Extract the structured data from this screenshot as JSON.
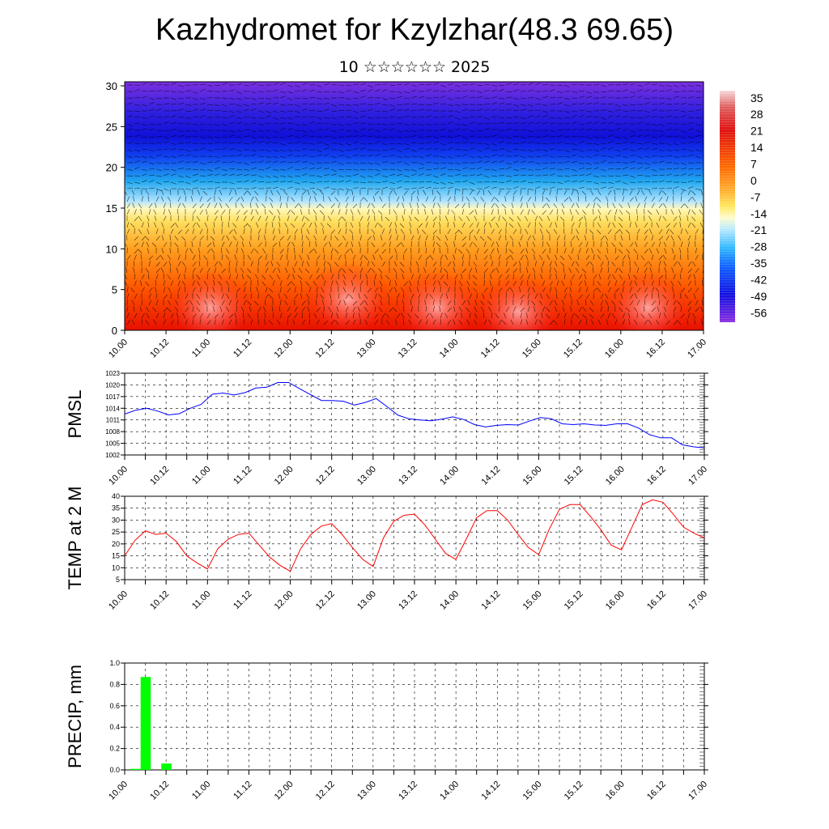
{
  "title": "Kazhydromet for Kzylzhar(48.3 69.65)",
  "subtitle": "10 ☆☆☆☆☆☆ 2025",
  "colors": {
    "pmsl_line": "#0000ff",
    "temp_line": "#ff0000",
    "precip_bar": "#00ff00",
    "grid": "#000000"
  },
  "chart_data": [
    {
      "type": "heatmap",
      "name": "cross-section temperature with wind vectors",
      "x_tick_labels": [
        "10.00",
        "10.12",
        "11.00",
        "11.12",
        "12.00",
        "12.12",
        "13.00",
        "13.12",
        "14.00",
        "14.12",
        "15.00",
        "15.12",
        "16.00",
        "16.12",
        "17.00"
      ],
      "y_tick_labels": [
        "0",
        "5",
        "10",
        "15",
        "20",
        "25",
        "30"
      ],
      "ylim": [
        0,
        30.5
      ],
      "colorbar_labels": [
        "35",
        "28",
        "21",
        "14",
        "7",
        "0",
        "-7",
        "-14",
        "-21",
        "-28",
        "-35",
        "-42",
        "-49",
        "-56"
      ],
      "colorbar_range": [
        -60,
        38
      ]
    },
    {
      "type": "line",
      "ylabel": "PMSL",
      "x_tick_labels": [
        "10.00",
        "10.12",
        "11.00",
        "11.12",
        "12.00",
        "12.12",
        "13.00",
        "13.12",
        "14.00",
        "14.12",
        "15.00",
        "15.12",
        "16.00",
        "16.12",
        "17.00"
      ],
      "y_tick_labels": [
        "1002",
        "1005",
        "1008",
        "1011",
        "1014",
        "1017",
        "1020",
        "1023"
      ],
      "ylim": [
        1002,
        1023
      ],
      "values": [
        1012.5,
        1013.5,
        1014,
        1013.3,
        1012.3,
        1012.6,
        1014,
        1015,
        1017.6,
        1017.9,
        1017.4,
        1018,
        1019.2,
        1019.4,
        1020.6,
        1020.6,
        1019,
        1017.5,
        1016,
        1016,
        1015.8,
        1014.8,
        1015.5,
        1016.5,
        1014.4,
        1012.2,
        1011.3,
        1011,
        1010.8,
        1011.2,
        1011.8,
        1011.1,
        1009.8,
        1009.2,
        1009.6,
        1009.8,
        1009.7,
        1010.7,
        1011.6,
        1011.3,
        1010,
        1009.8,
        1010,
        1009.7,
        1009.6,
        1010,
        1010,
        1008.9,
        1007.2,
        1006.4,
        1006.4,
        1004.6,
        1004.1,
        1003.8
      ]
    },
    {
      "type": "line",
      "ylabel": "TEMP at 2 M",
      "x_tick_labels": [
        "10.00",
        "10.12",
        "11.00",
        "11.12",
        "12.00",
        "12.12",
        "13.00",
        "13.12",
        "14.00",
        "14.12",
        "15.00",
        "15.12",
        "16.00",
        "16.12",
        "17.00"
      ],
      "y_tick_labels": [
        "5",
        "10",
        "15",
        "20",
        "25",
        "30",
        "35",
        "40"
      ],
      "ylim": [
        5,
        40
      ],
      "values": [
        15,
        21.5,
        25.5,
        24,
        24.5,
        21,
        15,
        12,
        9.5,
        18,
        22,
        24,
        24.5,
        19.5,
        14.5,
        11,
        8.5,
        18,
        24,
        27.5,
        28.5,
        24,
        18.5,
        13.5,
        10.5,
        22.5,
        29.5,
        32,
        32.5,
        28,
        22,
        16,
        13.5,
        22,
        31,
        34,
        34,
        30,
        24,
        18.5,
        15.5,
        26,
        34.5,
        36.5,
        36.5,
        31.5,
        26,
        19.5,
        17.5,
        27,
        36.5,
        38.5,
        37.5,
        32.5,
        27,
        24.5,
        22.5
      ]
    },
    {
      "type": "bar",
      "ylabel": "PRECIP, mm",
      "x_tick_labels": [
        "10.00",
        "10.12",
        "11.00",
        "11.12",
        "12.00",
        "12.12",
        "13.00",
        "13.12",
        "14.00",
        "14.12",
        "15.00",
        "15.12",
        "16.00",
        "16.12",
        "17.00"
      ],
      "y_tick_labels": [
        "0.0",
        "0.2",
        "0.4",
        "0.6",
        "0.8",
        "1.0"
      ],
      "ylim": [
        0,
        1.0
      ],
      "values": [
        0,
        0.01,
        0.87,
        0,
        0.06,
        0,
        0,
        0,
        0,
        0,
        0,
        0,
        0,
        0,
        0,
        0,
        0,
        0,
        0,
        0,
        0,
        0,
        0,
        0,
        0,
        0,
        0,
        0,
        0,
        0,
        0,
        0,
        0,
        0,
        0,
        0,
        0,
        0,
        0,
        0,
        0,
        0,
        0,
        0,
        0,
        0,
        0,
        0,
        0,
        0,
        0,
        0,
        0,
        0,
        0,
        0,
        0
      ]
    }
  ]
}
